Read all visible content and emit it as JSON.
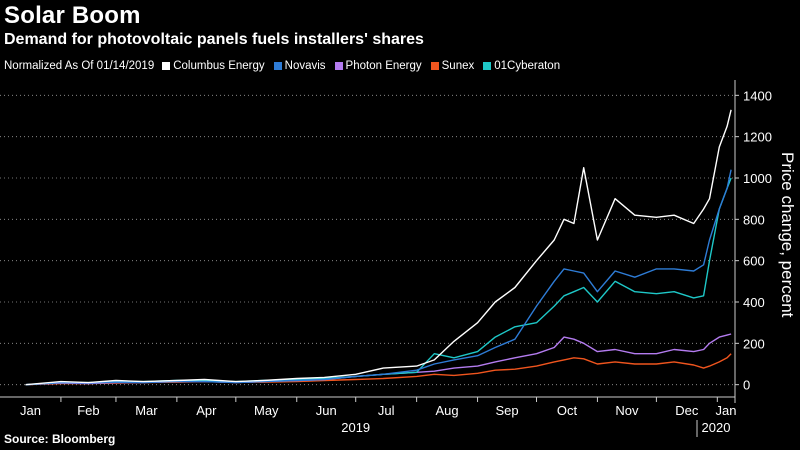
{
  "header": {
    "title": "Solar Boom",
    "subtitle": "Demand for photovoltaic panels fuels installers' shares"
  },
  "footer": {
    "source": "Source: Bloomberg"
  },
  "chart_data": {
    "type": "line",
    "title": "Solar Boom",
    "subtitle": "Demand for photovoltaic panels fuels installers' shares",
    "note": "Normalized As Of 01/14/2019",
    "ylabel": "Price change, percent",
    "xlabel": "",
    "ylim": [
      -50,
      1450
    ],
    "yticks": [
      0,
      200,
      400,
      600,
      800,
      1000,
      1200,
      1400
    ],
    "yaxis_position": "right",
    "grid": "horizontal dotted",
    "legend_position": "top-left",
    "x_months": [
      "Jan",
      "Feb",
      "Mar",
      "Apr",
      "May",
      "Jun",
      "Jul",
      "Aug",
      "Sep",
      "Oct",
      "Nov",
      "Dec",
      "Jan"
    ],
    "x_years": [
      {
        "label": "2019",
        "at": "2019-07-01"
      },
      {
        "label": "2020",
        "at": "2020-01-01"
      }
    ],
    "x_range": [
      "2019-01-01",
      "2020-01-10"
    ],
    "x": [
      "2019-01-14",
      "2019-02-01",
      "2019-02-15",
      "2019-03-01",
      "2019-03-15",
      "2019-04-01",
      "2019-04-15",
      "2019-05-01",
      "2019-05-15",
      "2019-06-01",
      "2019-06-15",
      "2019-07-01",
      "2019-07-15",
      "2019-08-01",
      "2019-08-10",
      "2019-08-20",
      "2019-09-01",
      "2019-09-10",
      "2019-09-20",
      "2019-10-01",
      "2019-10-10",
      "2019-10-15",
      "2019-10-20",
      "2019-10-25",
      "2019-11-01",
      "2019-11-10",
      "2019-11-20",
      "2019-12-01",
      "2019-12-10",
      "2019-12-20",
      "2019-12-25",
      "2019-12-28",
      "2020-01-02",
      "2020-01-06",
      "2020-01-08"
    ],
    "series": [
      {
        "name": "Columbus Energy",
        "color": "#ffffff",
        "values": [
          0,
          15,
          10,
          20,
          15,
          20,
          25,
          15,
          20,
          30,
          35,
          50,
          80,
          90,
          120,
          210,
          300,
          400,
          470,
          600,
          700,
          800,
          780,
          1050,
          700,
          900,
          820,
          810,
          820,
          780,
          850,
          900,
          1150,
          1250,
          1330
        ]
      },
      {
        "name": "Novavis",
        "color": "#2e7cd6",
        "values": [
          0,
          10,
          8,
          12,
          10,
          15,
          15,
          10,
          15,
          20,
          25,
          40,
          50,
          70,
          100,
          120,
          140,
          180,
          220,
          380,
          500,
          560,
          550,
          540,
          450,
          550,
          520,
          560,
          560,
          550,
          580,
          700,
          850,
          950,
          1040
        ]
      },
      {
        "name": "Photon Energy",
        "color": "#b47cf0",
        "values": [
          0,
          8,
          5,
          10,
          10,
          15,
          15,
          10,
          15,
          20,
          25,
          40,
          50,
          60,
          65,
          80,
          90,
          110,
          130,
          150,
          180,
          230,
          220,
          200,
          160,
          170,
          150,
          150,
          170,
          160,
          170,
          200,
          230,
          240,
          245
        ]
      },
      {
        "name": "Sunex",
        "color": "#f0551e",
        "values": [
          0,
          5,
          5,
          8,
          10,
          12,
          15,
          12,
          12,
          15,
          20,
          25,
          30,
          40,
          50,
          45,
          55,
          70,
          75,
          90,
          110,
          120,
          130,
          125,
          100,
          110,
          100,
          100,
          110,
          95,
          80,
          90,
          110,
          130,
          150
        ]
      },
      {
        "name": "01Cyberaton",
        "color": "#1ec8c8",
        "values": [
          0,
          10,
          10,
          15,
          15,
          20,
          20,
          15,
          20,
          25,
          30,
          40,
          50,
          60,
          150,
          130,
          160,
          230,
          280,
          300,
          380,
          430,
          450,
          470,
          400,
          500,
          450,
          440,
          450,
          420,
          430,
          600,
          850,
          950,
          1000
        ]
      }
    ]
  }
}
